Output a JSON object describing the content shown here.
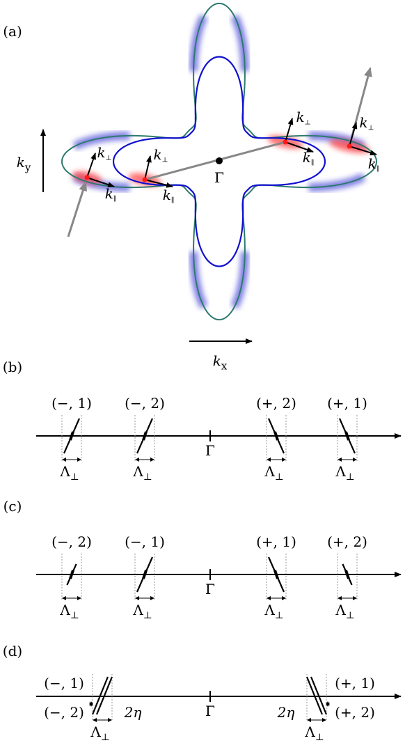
{
  "panels": [
    {
      "label": "(a)",
      "ky": {
        "base": "k",
        "sub": "y"
      },
      "kx": {
        "base": "k",
        "sub": "x"
      },
      "gamma": "Γ",
      "k_perp": [
        {
          "base": "k",
          "sub": "⊥"
        },
        {
          "base": "k",
          "sub": "⊥"
        },
        {
          "base": "k",
          "sub": "⊥"
        },
        {
          "base": "k",
          "sub": "⊥"
        }
      ],
      "k_par": [
        {
          "base": "k",
          "sub": "∥"
        },
        {
          "base": "k",
          "sub": "∥"
        },
        {
          "base": "k",
          "sub": "∥"
        },
        {
          "base": "k",
          "sub": "∥"
        }
      ]
    },
    {
      "label": "(b)",
      "gamma": "Γ",
      "points": [
        {
          "label": "(−, 1)",
          "width": {
            "base": "Λ",
            "sub": "⊥"
          }
        },
        {
          "label": "(−, 2)",
          "width": {
            "base": "Λ",
            "sub": "⊥"
          }
        },
        {
          "label": "(+, 2)",
          "width": {
            "base": "Λ",
            "sub": "⊥"
          }
        },
        {
          "label": "(+, 1)",
          "width": {
            "base": "Λ",
            "sub": "⊥"
          }
        }
      ]
    },
    {
      "label": "(c)",
      "gamma": "Γ",
      "points": [
        {
          "label": "(−, 2)",
          "width": {
            "base": "Λ",
            "sub": "⊥"
          }
        },
        {
          "label": "(−, 1)",
          "width": {
            "base": "Λ",
            "sub": "⊥"
          }
        },
        {
          "label": "(+, 1)",
          "width": {
            "base": "Λ",
            "sub": "⊥"
          }
        },
        {
          "label": "(+, 2)",
          "width": {
            "base": "Λ",
            "sub": "⊥"
          }
        }
      ]
    },
    {
      "label": "(d)",
      "gamma": "Γ",
      "labels": [
        "(−, 1)",
        "(−, 2)",
        "(+, 1)",
        "(+, 2)"
      ],
      "widths": [
        {
          "base": "Λ",
          "sub": "⊥"
        },
        {
          "base": "Λ",
          "sub": "⊥"
        }
      ],
      "splittings": [
        "2η",
        "2η"
      ]
    }
  ]
}
